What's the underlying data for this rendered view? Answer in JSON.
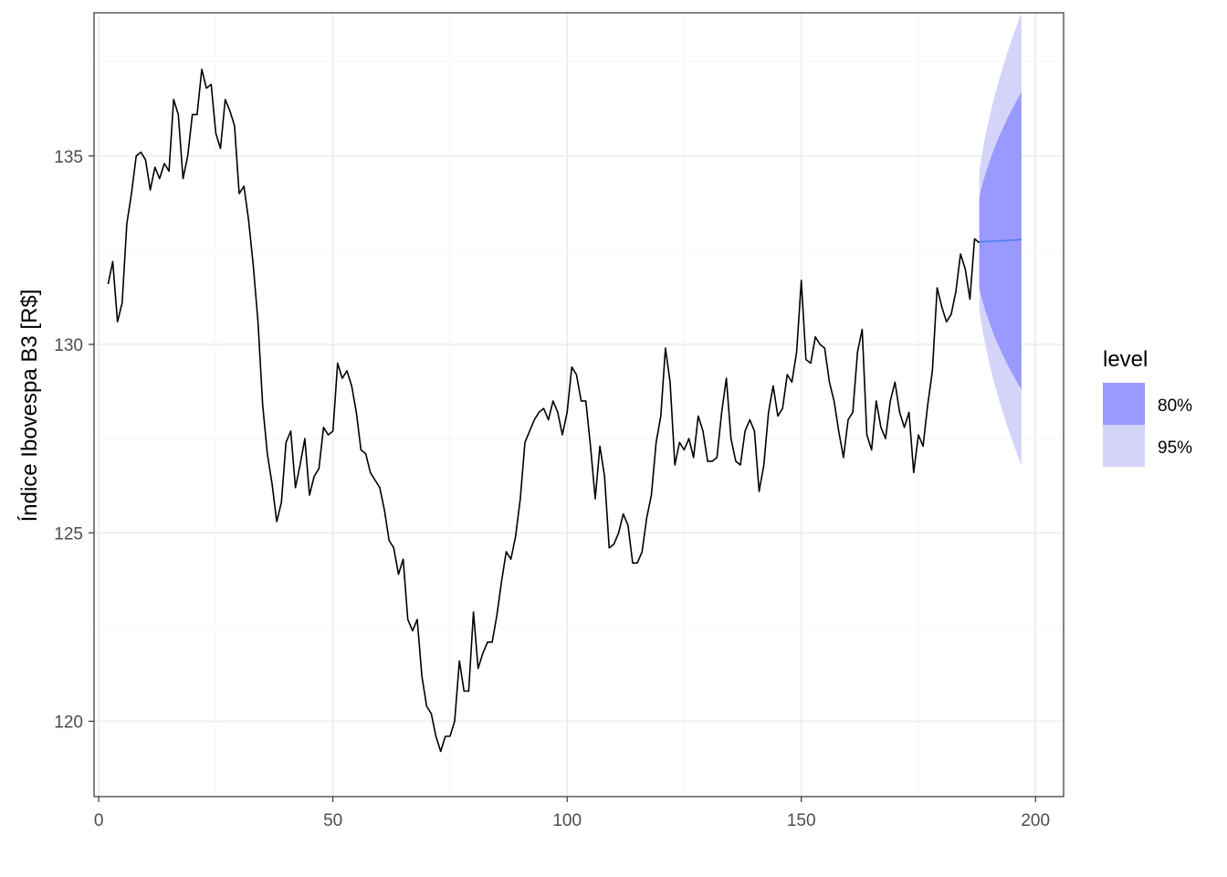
{
  "chart_data": {
    "type": "line",
    "title": "",
    "xlabel": "",
    "ylabel": "Índice Ibovespa B3 [R$]",
    "xlim": [
      -1,
      206
    ],
    "ylim": [
      118,
      138.8
    ],
    "x_ticks": [
      0,
      50,
      100,
      150,
      200
    ],
    "y_ticks": [
      120,
      125,
      130,
      135
    ],
    "grid": true,
    "legend": {
      "title": "level",
      "position": "right",
      "entries": [
        {
          "label": "80%",
          "color": "#9999ff"
        },
        {
          "label": "95%",
          "color": "#d4d4fb"
        }
      ]
    },
    "colors": {
      "series": "#000000",
      "forecast": "#4a7ff0",
      "band80": "#9999ff",
      "band95": "#d4d4fb",
      "grid_major": "#ebebeb",
      "grid_minor": "#f5f5f5",
      "border": "#333333"
    },
    "series": [
      {
        "x_start": 2,
        "values": [
          131.6,
          132.2,
          130.6,
          131.1,
          133.2,
          134.0,
          135.0,
          135.1,
          134.9,
          134.1,
          134.7,
          134.4,
          134.8,
          134.6,
          136.5,
          136.1,
          134.4,
          135.0,
          136.1,
          136.1,
          137.3,
          136.8,
          136.9,
          135.6,
          135.2,
          136.5,
          136.2,
          135.8,
          134.0,
          134.2,
          133.3,
          132.1,
          130.6,
          128.4,
          127.1,
          126.3,
          125.3,
          125.8,
          127.4,
          127.7,
          126.2,
          126.8,
          127.5,
          126.0,
          126.5,
          126.7,
          127.8,
          127.6,
          127.7,
          129.5,
          129.1,
          129.3,
          128.9,
          128.2,
          127.2,
          127.1,
          126.6,
          126.4,
          126.2,
          125.6,
          124.8,
          124.6,
          123.9,
          124.3,
          122.7,
          122.4,
          122.7,
          121.2,
          120.4,
          120.2,
          119.6,
          119.2,
          119.6,
          119.6,
          120.0,
          121.6,
          120.8,
          120.8,
          122.9,
          121.4,
          121.8,
          122.1,
          122.1,
          122.8,
          123.7,
          124.5,
          124.3,
          124.9,
          125.9,
          127.4,
          127.7,
          128.0,
          128.2,
          128.3,
          128.0,
          128.5,
          128.2,
          127.6,
          128.2,
          129.4,
          129.2,
          128.5,
          128.5,
          127.3,
          125.9,
          127.3,
          126.5,
          124.6,
          124.7,
          125.0,
          125.5,
          125.2,
          124.2,
          124.2,
          124.5,
          125.4,
          126.0,
          127.4,
          128.1,
          129.9,
          129.0,
          126.8,
          127.4,
          127.2,
          127.5,
          127.0,
          128.1,
          127.7,
          126.9,
          126.9,
          127.0,
          128.2,
          129.1,
          127.5,
          126.9,
          126.8,
          127.7,
          128.0,
          127.7,
          126.1,
          126.8,
          128.2,
          128.9,
          128.1,
          128.3,
          129.2,
          129.0,
          129.8,
          131.7,
          129.6,
          129.5,
          130.2,
          130.0,
          129.9,
          129.0,
          128.5,
          127.7,
          127.0,
          128.0,
          128.2,
          129.8,
          130.4,
          127.6,
          127.2,
          128.5,
          127.8,
          127.5,
          128.5,
          129.0,
          128.2,
          127.8,
          128.2,
          126.6,
          127.6,
          127.3,
          128.4,
          129.3,
          131.5,
          131.0,
          130.6,
          130.8,
          131.4,
          132.4,
          132.0,
          131.2,
          132.8,
          132.7
        ]
      }
    ],
    "forecast": {
      "x": [
        188,
        197
      ],
      "mean": [
        132.72,
        132.78
      ],
      "lo80": [
        131.5,
        128.8
      ],
      "hi80": [
        133.9,
        136.7
      ],
      "lo95": [
        130.9,
        126.8
      ],
      "hi95": [
        134.6,
        138.8
      ]
    }
  }
}
